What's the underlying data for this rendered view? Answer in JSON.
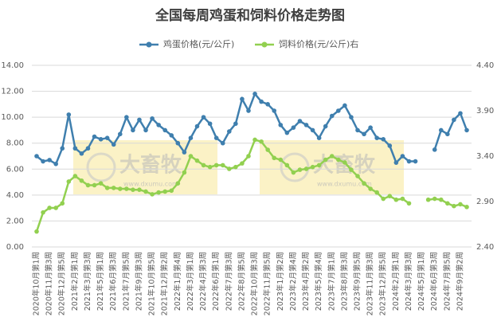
{
  "chart_data": {
    "type": "line",
    "title": "全国每周鸡蛋和饲料价格走势图",
    "watermark": [
      "大畜牧",
      "www.dxumu.com"
    ],
    "legend": "top",
    "categories": [
      "2020年10月第1周",
      null,
      "2020年11月第3周",
      null,
      "2020年12月第5周",
      null,
      "2021年2月第1周",
      null,
      "2021年3月第3周",
      null,
      "2021年5月第1周",
      null,
      "2021年6月第3周",
      null,
      "2021年7月第5周",
      null,
      "2021年9月第3周",
      null,
      "2021年10月第5周",
      null,
      "2021年12月第2周",
      null,
      "2022年1月第4周",
      null,
      "2022年3月第1周",
      null,
      "2022年4月第3周",
      null,
      "2022年6月第1周",
      null,
      "2022年7月第3周",
      null,
      "2022年8月第5周",
      null,
      "2022年10月第3周",
      null,
      "2022年11月第5周",
      null,
      "2023年1月第2周",
      null,
      "2023年2月第4周",
      null,
      "2023年4月第2周",
      null,
      "2023年5月第4周",
      null,
      "2023年7月第1周",
      null,
      "2023年8月第3周",
      null,
      "2023年9月第5周",
      null,
      "2023年11月第3周",
      null,
      "2023年12月第5周",
      null,
      "2024年2月第1周",
      null,
      "2024年3月第3周",
      null,
      "2024年5月第1周",
      null,
      "2024年6月第3周",
      null,
      "2024年7月第5周",
      null,
      "2024年9月第2周",
      null
    ],
    "series": [
      {
        "name": "鸡蛋价格(元/公斤)",
        "color": "#3f7fae",
        "values": [
          7.0,
          6.6,
          6.7,
          6.4,
          7.6,
          10.2,
          7.6,
          7.2,
          7.6,
          8.5,
          8.3,
          8.4,
          7.9,
          8.7,
          10.0,
          9.0,
          9.8,
          9.0,
          9.9,
          9.4,
          9.0,
          8.6,
          8.0,
          7.3,
          8.4,
          9.3,
          10.0,
          9.5,
          8.4,
          8.0,
          8.9,
          9.5,
          11.4,
          10.5,
          11.8,
          11.2,
          11.0,
          10.5,
          9.4,
          8.8,
          9.2,
          9.7,
          9.4,
          9.0,
          8.4,
          9.3,
          10.1,
          10.5,
          10.9,
          10.0,
          9.0,
          8.7,
          9.2,
          8.4,
          8.3,
          7.8,
          6.5,
          7.0,
          6.6,
          6.6,
          null,
          null,
          7.5,
          9.0,
          8.7,
          9.8,
          10.3,
          9.0
        ]
      },
      {
        "name": "饲料价格(元/公斤)右",
        "color": "#92d050",
        "axis": "y2",
        "values": [
          2.57,
          2.78,
          2.83,
          2.83,
          2.88,
          3.12,
          3.18,
          3.13,
          3.08,
          3.08,
          3.1,
          3.05,
          3.05,
          3.04,
          3.04,
          3.03,
          3.03,
          3.01,
          2.98,
          3.0,
          3.01,
          3.02,
          3.1,
          3.22,
          3.4,
          3.35,
          3.3,
          3.28,
          3.3,
          3.3,
          3.26,
          3.28,
          3.32,
          3.4,
          3.58,
          3.56,
          3.47,
          3.38,
          3.36,
          3.3,
          3.22,
          3.25,
          3.26,
          3.28,
          3.3,
          3.36,
          3.4,
          3.36,
          3.33,
          3.25,
          3.18,
          3.1,
          3.04,
          3.0,
          2.93,
          2.96,
          2.92,
          2.93,
          2.88,
          null,
          null,
          2.92,
          2.93,
          2.92,
          2.88,
          2.85,
          2.87,
          2.84
        ]
      }
    ],
    "ylim": [
      0,
      14
    ],
    "yticks": [
      {
        "value": 0,
        "label": "0.00"
      },
      {
        "value": 2,
        "label": "2.00"
      },
      {
        "value": 4,
        "label": "4.00"
      },
      {
        "value": 6,
        "label": "6.00"
      },
      {
        "value": 8,
        "label": "8.00"
      },
      {
        "value": 10,
        "label": "10.00"
      },
      {
        "value": 12,
        "label": "12.00"
      },
      {
        "value": 14,
        "label": "14.00"
      }
    ],
    "y2lim": [
      2.4,
      4.4
    ],
    "y2ticks": [
      {
        "value": 2.4,
        "label": "2.40"
      },
      {
        "value": 2.9,
        "label": "2.90"
      },
      {
        "value": 3.4,
        "label": "3.40"
      },
      {
        "value": 3.9,
        "label": "3.90"
      },
      {
        "value": 4.4,
        "label": "4.40"
      }
    ],
    "grid": true
  }
}
